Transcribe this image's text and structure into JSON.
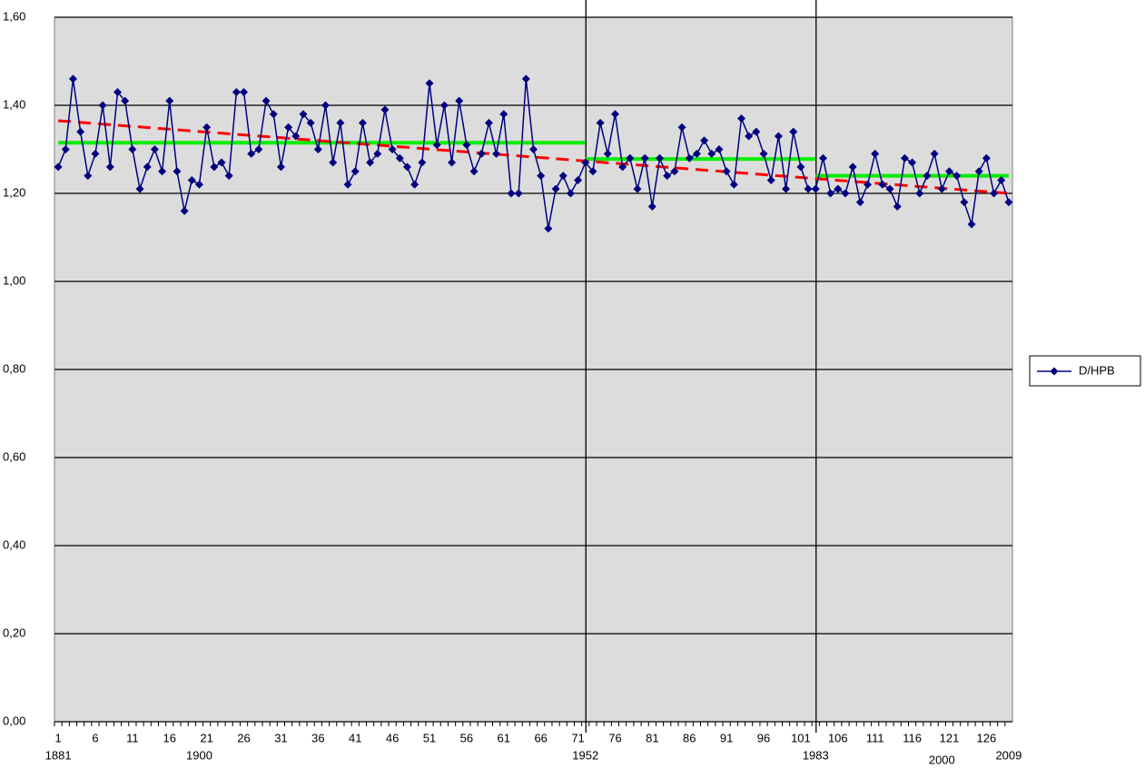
{
  "chart_data": {
    "type": "line",
    "categories": [
      "1",
      null,
      null,
      null,
      null,
      "6",
      null,
      null,
      null,
      null,
      "11",
      null,
      null,
      null,
      null,
      "16",
      null,
      null,
      null,
      null,
      "21",
      null,
      null,
      null,
      null,
      "26",
      null,
      null,
      null,
      null,
      "31",
      null,
      null,
      null,
      null,
      "36",
      null,
      null,
      null,
      null,
      "41",
      null,
      null,
      null,
      null,
      "46",
      null,
      null,
      null,
      null,
      "51",
      null,
      null,
      null,
      null,
      "56",
      null,
      null,
      null,
      null,
      "61",
      null,
      null,
      null,
      null,
      "66",
      null,
      null,
      null,
      null,
      "71",
      null,
      null,
      null,
      null,
      "76",
      null,
      null,
      null,
      null,
      "81",
      null,
      null,
      null,
      null,
      "86",
      null,
      null,
      null,
      null,
      "91",
      null,
      null,
      null,
      null,
      "96",
      null,
      null,
      null,
      null,
      "101",
      null,
      null,
      null,
      null,
      "106",
      null,
      null,
      null,
      null,
      "111",
      null,
      null,
      null,
      null,
      "116",
      null,
      null,
      null,
      null,
      "121",
      null,
      null,
      null,
      null,
      "126",
      null,
      null,
      null
    ],
    "series": [
      {
        "name": "D/HPB",
        "color": "#000080",
        "values": [
          1.26,
          1.3,
          1.46,
          1.34,
          1.24,
          1.29,
          1.4,
          1.26,
          1.43,
          1.41,
          1.3,
          1.21,
          1.26,
          1.3,
          1.25,
          1.41,
          1.25,
          1.16,
          1.23,
          1.22,
          1.35,
          1.26,
          1.27,
          1.24,
          1.43,
          1.43,
          1.29,
          1.3,
          1.41,
          1.38,
          1.26,
          1.35,
          1.33,
          1.38,
          1.36,
          1.3,
          1.4,
          1.27,
          1.36,
          1.22,
          1.25,
          1.36,
          1.27,
          1.29,
          1.39,
          1.3,
          1.28,
          1.26,
          1.22,
          1.27,
          1.45,
          1.31,
          1.4,
          1.27,
          1.41,
          1.31,
          1.25,
          1.29,
          1.36,
          1.29,
          1.38,
          1.2,
          1.2,
          1.46,
          1.3,
          1.24,
          1.12,
          1.21,
          1.24,
          1.2,
          1.23,
          1.27,
          1.25,
          1.36,
          1.29,
          1.38,
          1.26,
          1.28,
          1.21,
          1.28,
          1.17,
          1.28,
          1.24,
          1.25,
          1.35,
          1.28,
          1.29,
          1.32,
          1.29,
          1.3,
          1.25,
          1.22,
          1.37,
          1.33,
          1.34,
          1.29,
          1.23,
          1.33,
          1.21,
          1.34,
          1.26,
          1.21,
          1.21,
          1.28,
          1.2,
          1.21,
          1.2,
          1.26,
          1.18,
          1.22,
          1.29,
          1.22,
          1.21,
          1.17,
          1.28,
          1.27,
          1.2,
          1.24,
          1.29,
          1.21,
          1.25,
          1.24,
          1.18,
          1.13,
          1.25,
          1.28,
          1.2,
          1.23,
          1.18
        ]
      }
    ],
    "ylim": [
      0,
      1.6
    ],
    "yticks": [
      {
        "value": 0,
        "label": "0,00"
      },
      {
        "value": 0.2,
        "label": "0,20"
      },
      {
        "value": 0.4,
        "label": "0,40"
      },
      {
        "value": 0.6,
        "label": "0,60"
      },
      {
        "value": 0.8,
        "label": "0,80"
      },
      {
        "value": 1.0,
        "label": "1,00"
      },
      {
        "value": 1.2,
        "label": "1,20"
      },
      {
        "value": 1.4,
        "label": "1,40"
      },
      {
        "value": 1.6,
        "label": "1,60"
      }
    ],
    "grid": true,
    "legend": "right",
    "year_labels": [
      {
        "label": "1881",
        "at": 1
      },
      {
        "label": "1900",
        "at": 20
      },
      {
        "label": "1952",
        "at": 72
      },
      {
        "label": "1983",
        "at": 103
      },
      {
        "label": "2000",
        "at": 120
      },
      {
        "label": "2009",
        "at": 129
      }
    ],
    "vlines": [
      72,
      103
    ],
    "segment_means": [
      {
        "from": 1,
        "to": 72,
        "value": 1.315,
        "color": "#00ee00"
      },
      {
        "from": 72,
        "to": 103,
        "value": 1.278,
        "color": "#00ee00"
      },
      {
        "from": 103,
        "to": 129,
        "value": 1.24,
        "color": "#00ee00"
      }
    ],
    "trend": {
      "start": 1.365,
      "end": 1.2,
      "color": "#ff0000"
    }
  }
}
